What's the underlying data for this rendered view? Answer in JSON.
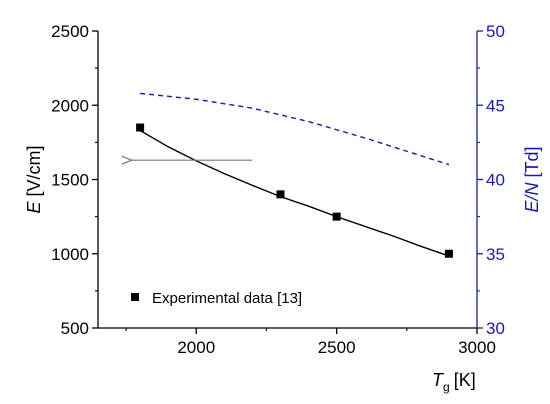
{
  "chart_data": {
    "type": "line",
    "x_axis": {
      "label_var": "T",
      "label_sub": "g",
      "label_unit": "[K]",
      "range": [
        1650,
        3000
      ],
      "ticks": [
        2000,
        2500,
        3000
      ],
      "minor_ticks": [
        1750,
        2250,
        2750
      ]
    },
    "y_left": {
      "label_var": "E",
      "label_unit": "[V/cm]",
      "range": [
        500,
        2500
      ],
      "ticks": [
        500,
        1000,
        1500,
        2000,
        2500
      ]
    },
    "y_right": {
      "label_var": "E/N",
      "label_unit": "[Td]",
      "range": [
        30,
        50
      ],
      "ticks": [
        30,
        35,
        40,
        45,
        50
      ],
      "color": "#1a1aa6"
    },
    "series": [
      {
        "name": "Experimental data [13]",
        "kind": "scatter",
        "axis": "left",
        "marker": "square",
        "color": "#000000",
        "x": [
          1800,
          2300,
          2500,
          2900
        ],
        "y": [
          1850,
          1400,
          1250,
          1000
        ]
      },
      {
        "kind": "line",
        "axis": "left",
        "style": "solid",
        "color": "#000000",
        "x": [
          1800,
          1900,
          2000,
          2100,
          2200,
          2300,
          2400,
          2500,
          2600,
          2700,
          2800,
          2900
        ],
        "y": [
          1830,
          1720,
          1625,
          1540,
          1460,
          1385,
          1320,
          1250,
          1185,
          1120,
          1050,
          985
        ]
      },
      {
        "kind": "line",
        "axis": "right",
        "style": "dashed",
        "color": "#1a1aa6",
        "x": [
          1800,
          2000,
          2200,
          2400,
          2600,
          2800,
          2900
        ],
        "y": [
          45.8,
          45.4,
          44.8,
          43.9,
          42.8,
          41.6,
          41.0
        ]
      }
    ],
    "annotation": {
      "type": "arrow",
      "axis": "left",
      "from": [
        2200,
        1630
      ],
      "to": [
        1770,
        1630
      ],
      "color": "#777777"
    },
    "legend": {
      "position": "bottom-left",
      "entries": [
        {
          "label": "Experimental data [13]",
          "marker": "square"
        }
      ]
    },
    "grid": false
  }
}
